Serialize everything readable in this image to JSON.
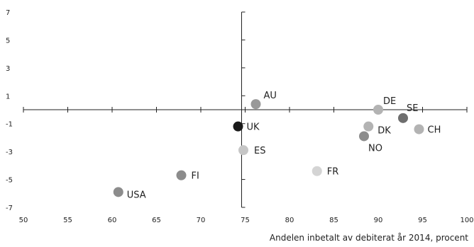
{
  "chart_data": {
    "type": "scatter",
    "title": "",
    "xlabel": "Andelen inbetalt av debiterat år 2014, procent",
    "ylabel": "",
    "xlim": [
      50,
      100
    ],
    "ylim": [
      -7,
      7
    ],
    "grid": false,
    "x_ticks": [
      50,
      55,
      60,
      65,
      70,
      75,
      80,
      85,
      90,
      95,
      100
    ],
    "y_ticks": [
      7,
      5,
      3,
      1,
      -1,
      -3,
      -5,
      -7
    ],
    "x_tick_labels": [
      "50",
      "55",
      "60",
      "65",
      "70",
      "75",
      "80",
      "85",
      "90",
      "95",
      "100"
    ],
    "y_tick_labels": [
      "7",
      "5",
      "3",
      "1",
      "-1",
      "-3",
      "-5",
      "-7"
    ],
    "y_axis_at_x": 74.6,
    "x_axis_at_y": 0,
    "points": [
      {
        "label": "AU",
        "x": 76.2,
        "y": 0.4,
        "color": "#999999"
      },
      {
        "label": "DE",
        "x": 90.0,
        "y": 0.0,
        "color": "#b3b3b3"
      },
      {
        "label": "SE",
        "x": 92.8,
        "y": -0.6,
        "color": "#6e6e6e"
      },
      {
        "label": "CH",
        "x": 94.6,
        "y": -1.4,
        "color": "#b3b3b3"
      },
      {
        "label": "DK",
        "x": 88.9,
        "y": -1.2,
        "color": "#b3b3b3"
      },
      {
        "label": "NO",
        "x": 88.4,
        "y": -1.9,
        "color": "#8c8c8c"
      },
      {
        "label": "UK",
        "x": 74.2,
        "y": -1.2,
        "color": "#1a1a1a"
      },
      {
        "label": "ES",
        "x": 74.8,
        "y": -2.9,
        "color": "#c6c6c6"
      },
      {
        "label": "FR",
        "x": 83.1,
        "y": -4.4,
        "color": "#d4d4d4"
      },
      {
        "label": "FI",
        "x": 67.8,
        "y": -4.7,
        "color": "#8c8c8c"
      },
      {
        "label": "USA",
        "x": 60.7,
        "y": -5.9,
        "color": "#8c8c8c"
      }
    ]
  }
}
